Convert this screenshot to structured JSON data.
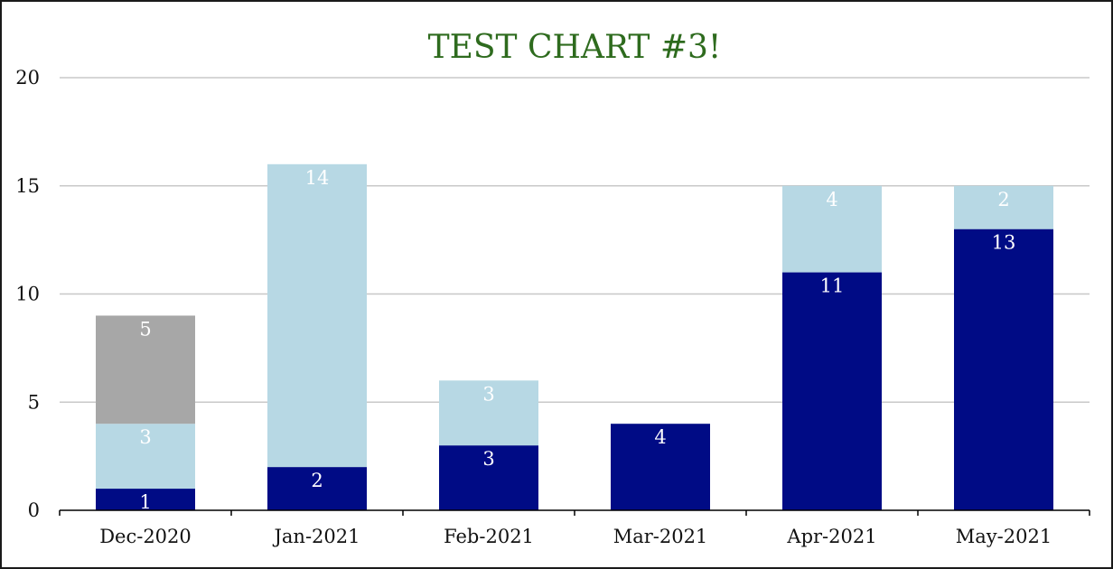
{
  "chart_data": {
    "type": "bar",
    "stacked": true,
    "title": "TEST CHART #3!",
    "xlabel": "",
    "ylabel": "",
    "ylim": [
      0,
      20
    ],
    "yticks": [
      0,
      5,
      10,
      15,
      20
    ],
    "grid": true,
    "legend": "none",
    "categories": [
      "Dec-2020",
      "Jan-2021",
      "Feb-2021",
      "Mar-2021",
      "Apr-2021",
      "May-2021"
    ],
    "series": [
      {
        "color": "#000b85",
        "values": [
          1,
          2,
          3,
          4,
          11,
          13
        ]
      },
      {
        "color": "#b7d8e4",
        "values": [
          3,
          14,
          3,
          0,
          4,
          2
        ]
      },
      {
        "color": "#a7a7a7",
        "values": [
          5,
          0,
          0,
          0,
          0,
          0
        ]
      }
    ],
    "colors": {
      "title": "#2e6b1e",
      "gridline": "#c8c8c8",
      "axis": "#000000",
      "data_label": "#ffffff"
    }
  }
}
